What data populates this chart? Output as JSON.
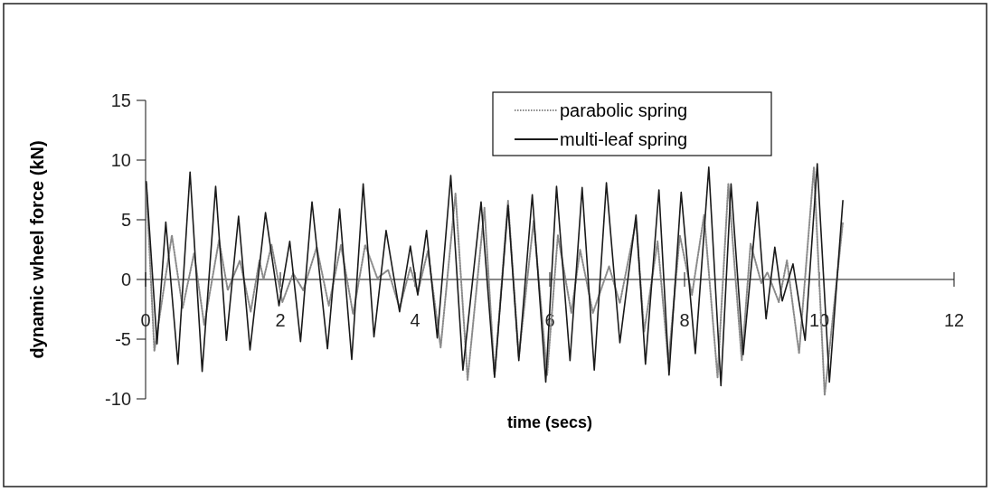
{
  "chart_data": {
    "type": "line",
    "xlabel": "time (secs)",
    "ylabel": "dynamic wheel force (kN)",
    "xlim": [
      0,
      12
    ],
    "ylim": [
      -10,
      15
    ],
    "xticks": [
      0,
      2,
      4,
      6,
      8,
      10,
      12
    ],
    "yticks": [
      -10,
      -5,
      0,
      5,
      10,
      15
    ],
    "grid": false,
    "legend": "top right",
    "marker": "none",
    "series": [
      {
        "name": "parabolic spring",
        "color": "#8a8a8a",
        "line_style": "dotted",
        "x": [
          0.01,
          0.13,
          0.39,
          0.55,
          0.72,
          0.87,
          1.09,
          1.22,
          1.4,
          1.56,
          1.69,
          1.75,
          1.87,
          2.03,
          2.19,
          2.34,
          2.54,
          2.72,
          2.9,
          3.08,
          3.26,
          3.44,
          3.6,
          3.77,
          3.93,
          4.04,
          4.19,
          4.38,
          4.6,
          4.78,
          5.03,
          5.18,
          5.38,
          5.54,
          5.76,
          5.96,
          6.12,
          6.32,
          6.45,
          6.64,
          6.88,
          7.04,
          7.28,
          7.4,
          7.6,
          7.76,
          7.93,
          8.11,
          8.29,
          8.49,
          8.65,
          8.85,
          8.98,
          9.14,
          9.23,
          9.4,
          9.52,
          9.7,
          9.92,
          10.08,
          10.35
        ],
        "values": [
          8.0,
          -6.0,
          3.7,
          -2.4,
          2.2,
          -3.8,
          3.3,
          -0.9,
          1.6,
          -2.7,
          1.6,
          0,
          2.9,
          -1.9,
          0.5,
          -0.9,
          2.7,
          -2.2,
          2.9,
          -2.9,
          2.9,
          0.1,
          0.8,
          -2.4,
          1.0,
          -1.1,
          2.4,
          -5.7,
          7.2,
          -8.4,
          6.0,
          -8.0,
          6.6,
          -6.5,
          4.9,
          -8.0,
          3.7,
          -2.8,
          2.5,
          -2.8,
          1.1,
          -2.0,
          4.9,
          -4.4,
          3.2,
          -7.0,
          3.7,
          -1.3,
          5.4,
          -8.2,
          8.0,
          -6.8,
          3.0,
          -0.3,
          0.6,
          -1.9,
          1.6,
          -6.2,
          9.4,
          -9.7,
          4.8
        ]
      },
      {
        "name": "multi-leaf spring",
        "color": "#1a1a1a",
        "line_style": "solid",
        "x": [
          0.01,
          0.17,
          0.3,
          0.48,
          0.66,
          0.84,
          1.04,
          1.2,
          1.38,
          1.55,
          1.78,
          1.98,
          2.14,
          2.3,
          2.47,
          2.7,
          2.88,
          3.06,
          3.23,
          3.39,
          3.57,
          3.77,
          3.93,
          4.04,
          4.17,
          4.33,
          4.53,
          4.71,
          4.98,
          5.18,
          5.38,
          5.54,
          5.74,
          5.94,
          6.1,
          6.3,
          6.48,
          6.66,
          6.84,
          7.04,
          7.28,
          7.42,
          7.62,
          7.77,
          7.95,
          8.16,
          8.36,
          8.54,
          8.69,
          8.87,
          9.08,
          9.21,
          9.34,
          9.45,
          9.61,
          9.79,
          9.97,
          10.15,
          10.35
        ],
        "values": [
          8.2,
          -5.4,
          4.8,
          -7.1,
          9.0,
          -7.7,
          7.8,
          -5.1,
          5.3,
          -5.9,
          5.6,
          -2.2,
          3.2,
          -5.2,
          6.5,
          -5.8,
          5.9,
          -6.7,
          8.0,
          -4.8,
          4.1,
          -2.7,
          2.8,
          -1.3,
          4.1,
          -4.9,
          8.7,
          -7.6,
          6.5,
          -8.2,
          6.2,
          -6.8,
          7.1,
          -8.6,
          7.8,
          -6.8,
          7.7,
          -7.6,
          8.1,
          -5.3,
          5.4,
          -7.1,
          7.5,
          -8.0,
          7.3,
          -6.2,
          9.4,
          -8.9,
          8.0,
          -6.3,
          6.5,
          -3.3,
          2.7,
          -1.8,
          1.3,
          -5.1,
          9.7,
          -8.6,
          6.6
        ]
      }
    ]
  }
}
